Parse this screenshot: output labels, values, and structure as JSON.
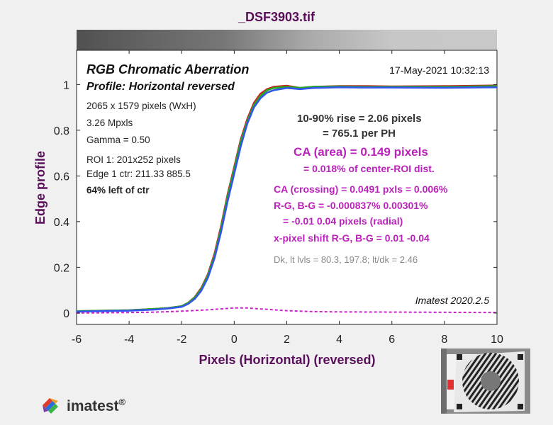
{
  "window_title": "_DSF3903.tif",
  "chart_data": {
    "type": "line",
    "title": "RGB Chromatic Aberration",
    "subtitle": "Profile: Horizontal reversed",
    "timestamp": "17-May-2021 10:32:13",
    "xlabel": "Pixels (Horizontal)   (reversed)",
    "ylabel": "Edge profile",
    "xlim": [
      -6,
      10
    ],
    "ylim": [
      -0.05,
      1.15
    ],
    "xticks": [
      "-6",
      "-4",
      "-2",
      "0",
      "2",
      "4",
      "6",
      "8",
      "10"
    ],
    "yticks": [
      "0",
      "0.2",
      "0.4",
      "0.6",
      "0.8",
      "1"
    ],
    "grid": false,
    "series": [
      {
        "color": "#cc2222",
        "points": [
          [
            -6,
            0.008
          ],
          [
            -4,
            0.012
          ],
          [
            -3,
            0.018
          ],
          [
            -2.5,
            0.022
          ],
          [
            -2,
            0.03
          ],
          [
            -1.75,
            0.045
          ],
          [
            -1.5,
            0.07
          ],
          [
            -1.25,
            0.11
          ],
          [
            -1,
            0.17
          ],
          [
            -0.75,
            0.26
          ],
          [
            -0.5,
            0.38
          ],
          [
            -0.25,
            0.52
          ],
          [
            0,
            0.64
          ],
          [
            0.25,
            0.76
          ],
          [
            0.5,
            0.85
          ],
          [
            0.75,
            0.92
          ],
          [
            1,
            0.96
          ],
          [
            1.25,
            0.98
          ],
          [
            1.5,
            0.99
          ],
          [
            2,
            0.995
          ],
          [
            2.5,
            0.985
          ],
          [
            3,
            0.99
          ],
          [
            4,
            0.993
          ],
          [
            5,
            0.993
          ],
          [
            6,
            0.992
          ],
          [
            8,
            0.993
          ],
          [
            10,
            0.996
          ]
        ]
      },
      {
        "color": "#22aa22",
        "points": [
          [
            -6,
            0.008
          ],
          [
            -4,
            0.012
          ],
          [
            -3,
            0.018
          ],
          [
            -2.5,
            0.022
          ],
          [
            -2,
            0.03
          ],
          [
            -1.75,
            0.044
          ],
          [
            -1.5,
            0.068
          ],
          [
            -1.25,
            0.105
          ],
          [
            -1,
            0.165
          ],
          [
            -0.75,
            0.25
          ],
          [
            -0.5,
            0.37
          ],
          [
            -0.25,
            0.51
          ],
          [
            0,
            0.63
          ],
          [
            0.25,
            0.75
          ],
          [
            0.5,
            0.84
          ],
          [
            0.75,
            0.91
          ],
          [
            1,
            0.95
          ],
          [
            1.25,
            0.975
          ],
          [
            1.5,
            0.985
          ],
          [
            2,
            0.99
          ],
          [
            2.5,
            0.985
          ],
          [
            3,
            0.99
          ],
          [
            4,
            0.992
          ],
          [
            5,
            0.99
          ],
          [
            6,
            0.99
          ],
          [
            8,
            0.99
          ],
          [
            10,
            0.993
          ]
        ]
      },
      {
        "color": "#3355ee",
        "points": [
          [
            -6,
            0.006
          ],
          [
            -4,
            0.01
          ],
          [
            -3,
            0.015
          ],
          [
            -2.5,
            0.02
          ],
          [
            -2,
            0.027
          ],
          [
            -1.75,
            0.04
          ],
          [
            -1.5,
            0.062
          ],
          [
            -1.25,
            0.098
          ],
          [
            -1,
            0.155
          ],
          [
            -0.75,
            0.24
          ],
          [
            -0.5,
            0.355
          ],
          [
            -0.25,
            0.49
          ],
          [
            0,
            0.61
          ],
          [
            0.25,
            0.73
          ],
          [
            0.5,
            0.83
          ],
          [
            0.75,
            0.9
          ],
          [
            1,
            0.94
          ],
          [
            1.25,
            0.965
          ],
          [
            1.5,
            0.975
          ],
          [
            2,
            0.985
          ],
          [
            2.5,
            0.98
          ],
          [
            3,
            0.985
          ],
          [
            4,
            0.988
          ],
          [
            5,
            0.987
          ],
          [
            6,
            0.987
          ],
          [
            8,
            0.986
          ],
          [
            10,
            0.988
          ]
        ]
      },
      {
        "color": "#cc22cc",
        "dashed": true,
        "points": [
          [
            -6,
            0.0
          ],
          [
            -4,
            0.002
          ],
          [
            -3,
            0.004
          ],
          [
            -2,
            0.008
          ],
          [
            -1,
            0.014
          ],
          [
            -0.5,
            0.018
          ],
          [
            0,
            0.022
          ],
          [
            0.5,
            0.022
          ],
          [
            1,
            0.018
          ],
          [
            2,
            0.01
          ],
          [
            3,
            0.006
          ],
          [
            4,
            0.005
          ],
          [
            6,
            0.004
          ],
          [
            8,
            0.003
          ],
          [
            10,
            0.002
          ]
        ]
      }
    ],
    "info_left": [
      {
        "text": "2065 x 1579 pixels (WxH)",
        "bold": false
      },
      {
        "text": "3.26 Mpxls",
        "bold": false
      },
      {
        "text": "Gamma = 0.50",
        "bold": false
      },
      {
        "text": "ROI 1: 201x252 pixels",
        "bold": false
      },
      {
        "text": "Edge 1 ctr: 211.33  885.5",
        "bold": false
      },
      {
        "text": "64% left of ctr",
        "bold": true
      }
    ],
    "annotations": [
      {
        "text": "10-90% rise = 2.06 pixels",
        "color": "#333333",
        "size": 15
      },
      {
        "text": "= 765.1 per PH",
        "color": "#333333",
        "size": 15
      },
      {
        "text": "CA (area) = 0.149 pixels",
        "color": "#bb22bb",
        "size": 17
      },
      {
        "text": "= 0.018% of center-ROI dist.",
        "color": "#bb22bb",
        "size": 14
      },
      {
        "text": "CA (crossing) = 0.0491 pxls = 0.006%",
        "color": "#bb22bb",
        "size": 14
      },
      {
        "text": "R-G, B-G = -0.000837%  0.00301%",
        "color": "#bb22bb",
        "size": 14
      },
      {
        "text": "= -0.01  0.04 pixels (radial)",
        "color": "#bb22bb",
        "size": 14
      },
      {
        "text": "x-pixel shift R-G, B-G = 0.01  -0.04",
        "color": "#bb22bb",
        "size": 14
      },
      {
        "text": "Dk, lt lvls = 80.3, 197.8;  lt/dk = 2.46",
        "color": "#888888",
        "size": 13
      }
    ],
    "version": "Imatest 2020.2.5"
  },
  "logo_text": "imatest",
  "logo_reg": "®",
  "colors": {
    "title": "#5a0f5a",
    "axis_label": "#5a0f5a"
  }
}
